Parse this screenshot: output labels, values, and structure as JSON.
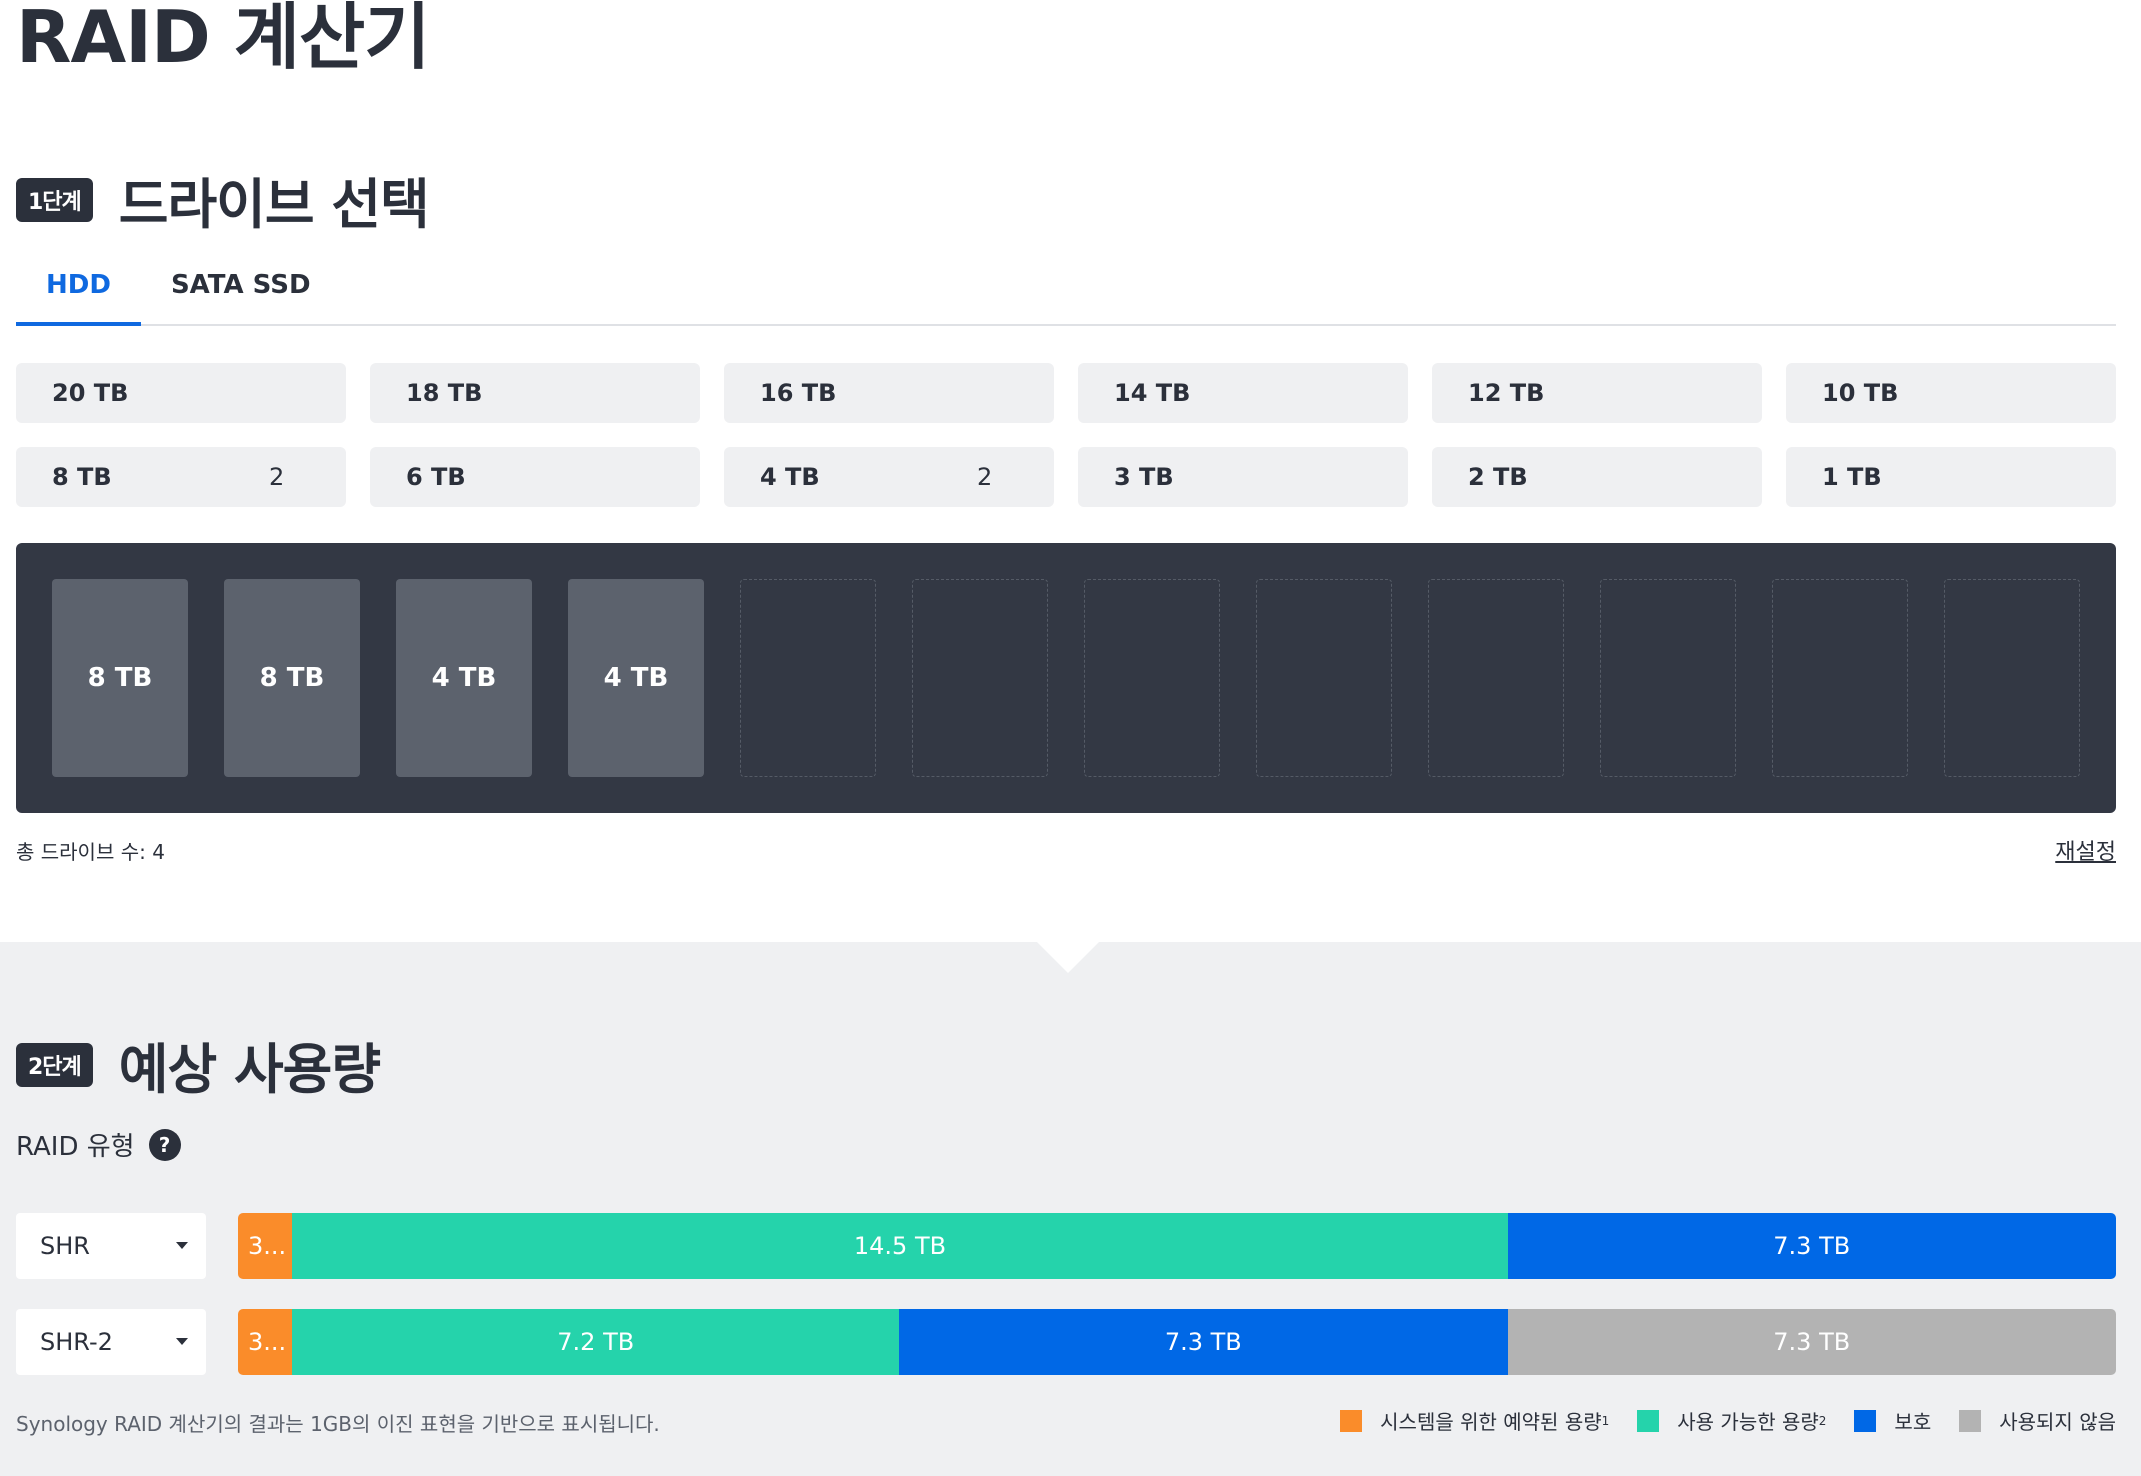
{
  "title": "RAID 계산기",
  "step1": {
    "badge": "1단계",
    "title": "드라이브 선택"
  },
  "tabs": [
    {
      "label": "HDD",
      "active": true
    },
    {
      "label": "SATA SSD",
      "active": false
    }
  ],
  "sizes": [
    {
      "label": "20 TB",
      "count": ""
    },
    {
      "label": "18 TB",
      "count": ""
    },
    {
      "label": "16 TB",
      "count": ""
    },
    {
      "label": "14 TB",
      "count": ""
    },
    {
      "label": "12 TB",
      "count": ""
    },
    {
      "label": "10 TB",
      "count": ""
    },
    {
      "label": "8 TB",
      "count": "2"
    },
    {
      "label": "6 TB",
      "count": ""
    },
    {
      "label": "4 TB",
      "count": "2"
    },
    {
      "label": "3 TB",
      "count": ""
    },
    {
      "label": "2 TB",
      "count": ""
    },
    {
      "label": "1 TB",
      "count": ""
    }
  ],
  "bays": [
    "8 TB",
    "8 TB",
    "4 TB",
    "4 TB",
    "",
    "",
    "",
    "",
    "",
    "",
    "",
    ""
  ],
  "total_drives": "총 드라이브 수: 4",
  "reset_label": "재설정",
  "step2": {
    "badge": "2단계",
    "title": "예상 사용량"
  },
  "raid_type_label": "RAID 유형",
  "help_label": "?",
  "colors": {
    "reserved": "#fa8c2a",
    "available": "#25d3ab",
    "protection": "#0068e6",
    "unused": "#b3b3b3"
  },
  "raid_rows": [
    {
      "type": "SHR",
      "segments": [
        {
          "kind": "reserved",
          "label": "3...",
          "fraction": 0.029
        },
        {
          "kind": "available",
          "label": "14.5 TB",
          "fraction": 0.647
        },
        {
          "kind": "protection",
          "label": "7.3 TB",
          "fraction": 0.324
        }
      ]
    },
    {
      "type": "SHR-2",
      "segments": [
        {
          "kind": "reserved",
          "label": "3...",
          "fraction": 0.029
        },
        {
          "kind": "available",
          "label": "7.2 TB",
          "fraction": 0.323
        },
        {
          "kind": "protection",
          "label": "7.3 TB",
          "fraction": 0.324
        },
        {
          "kind": "unused",
          "label": "7.3 TB",
          "fraction": 0.324
        }
      ]
    }
  ],
  "footnote": "Synology RAID 계산기의 결과는 1GB의 이진 표현을 기반으로 표시됩니다.",
  "legend": [
    {
      "kind": "reserved",
      "label": "시스템을 위한 예약된 용량",
      "sup": "1"
    },
    {
      "kind": "available",
      "label": "사용 가능한 용량",
      "sup": "2"
    },
    {
      "kind": "protection",
      "label": "보호",
      "sup": ""
    },
    {
      "kind": "unused",
      "label": "사용되지 않음",
      "sup": ""
    }
  ]
}
